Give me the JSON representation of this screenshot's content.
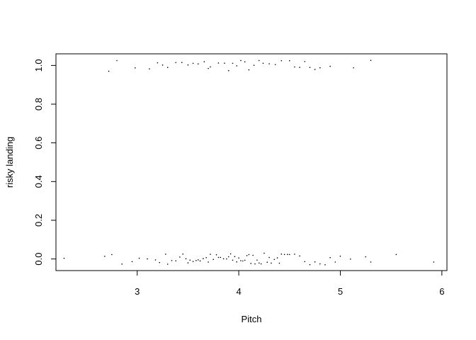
{
  "chart_data": {
    "type": "scatter",
    "title": "",
    "xlabel": "Pitch",
    "ylabel": "risky landing",
    "xlim": [
      2.2,
      6.05
    ],
    "ylim": [
      -0.06,
      1.06
    ],
    "x_ticks": [
      "3",
      "4",
      "5",
      "6"
    ],
    "y_ticks": [
      "0.0",
      "0.2",
      "0.4",
      "0.6",
      "0.8",
      "1.0"
    ],
    "grid": false,
    "legend": "none",
    "colors": {
      "points": "#000000",
      "axes": "#000000",
      "background": "#ffffff"
    },
    "series": [
      {
        "y": 1,
        "jitter": 0.03,
        "x": [
          2.72,
          2.8,
          2.98,
          3.12,
          3.2,
          3.25,
          3.3,
          3.38,
          3.44,
          3.5,
          3.55,
          3.6,
          3.66,
          3.7,
          3.72,
          3.8,
          3.86,
          3.9,
          3.94,
          3.98,
          4.02,
          4.06,
          4.1,
          4.15,
          4.2,
          4.24,
          4.3,
          4.36,
          4.42,
          4.5,
          4.55,
          4.6,
          4.65,
          4.7,
          4.75,
          4.8,
          4.9,
          5.13,
          5.3
        ]
      },
      {
        "y": 0,
        "jitter": 0.03,
        "x": [
          2.28,
          2.68,
          2.75,
          2.85,
          2.95,
          3.02,
          3.1,
          3.18,
          3.22,
          3.28,
          3.3,
          3.34,
          3.38,
          3.42,
          3.45,
          3.48,
          3.5,
          3.52,
          3.55,
          3.58,
          3.6,
          3.62,
          3.65,
          3.68,
          3.7,
          3.72,
          3.75,
          3.78,
          3.8,
          3.82,
          3.85,
          3.88,
          3.9,
          3.92,
          3.94,
          3.96,
          3.98,
          4.0,
          4.02,
          4.04,
          4.06,
          4.08,
          4.1,
          4.12,
          4.14,
          4.16,
          4.18,
          4.2,
          4.22,
          4.25,
          4.28,
          4.3,
          4.32,
          4.35,
          4.38,
          4.4,
          4.42,
          4.45,
          4.48,
          4.5,
          4.55,
          4.6,
          4.65,
          4.7,
          4.75,
          4.8,
          4.85,
          4.9,
          4.95,
          5.0,
          5.1,
          5.25,
          5.3,
          5.55,
          5.92
        ]
      }
    ]
  }
}
